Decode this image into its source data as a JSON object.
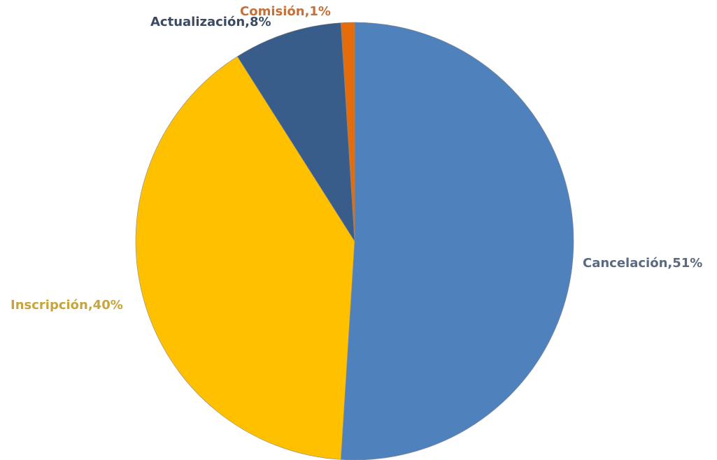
{
  "chart_data": {
    "type": "pie",
    "values": [
      51,
      40,
      8,
      1
    ],
    "value_labels": [
      "Cancelación,51%",
      "Inscripción,40%",
      "Actualización,8%",
      "Comisión,1%"
    ],
    "colors": [
      "#4f81bd",
      "#ffc000",
      "#385d8a",
      "#e46c0a"
    ],
    "label_colors": [
      "#5a6a80",
      "#c8a43c",
      "#3b4a63",
      "#c47038"
    ]
  }
}
